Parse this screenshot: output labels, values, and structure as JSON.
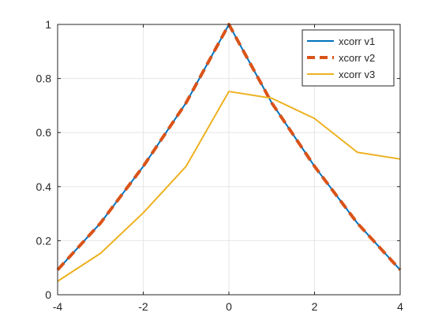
{
  "chart_data": {
    "type": "line",
    "title": "",
    "xlabel": "",
    "ylabel": "",
    "xlim": [
      -4,
      4
    ],
    "ylim": [
      0,
      1
    ],
    "xticks": [
      -4,
      -2,
      0,
      2,
      4
    ],
    "xtick_labels": [
      "-4",
      "-2",
      "0",
      "2",
      "4"
    ],
    "yticks": [
      0,
      0.2,
      0.4,
      0.6,
      0.8,
      1
    ],
    "ytick_labels": [
      "0",
      "0.2",
      "0.4",
      "0.6",
      "0.8",
      "1"
    ],
    "grid": true,
    "legend_position": "top-right",
    "x": [
      -4,
      -3,
      -2,
      -1,
      0,
      1,
      2,
      3,
      4
    ],
    "series": [
      {
        "name": "xcorr v1",
        "values": [
          0.092,
          0.265,
          0.475,
          0.71,
          1.0,
          0.71,
          0.475,
          0.265,
          0.092
        ],
        "color": "#0072BD",
        "line_style": "solid"
      },
      {
        "name": "xcorr v2",
        "values": [
          0.092,
          0.265,
          0.475,
          0.71,
          1.0,
          0.71,
          0.475,
          0.265,
          0.092
        ],
        "color": "#D95319",
        "line_style": "dashed"
      },
      {
        "name": "xcorr v3",
        "values": [
          0.05,
          0.153,
          0.303,
          0.475,
          0.752,
          0.727,
          0.652,
          0.527,
          0.502
        ],
        "color": "#EDB120",
        "line_style": "solid"
      }
    ]
  }
}
